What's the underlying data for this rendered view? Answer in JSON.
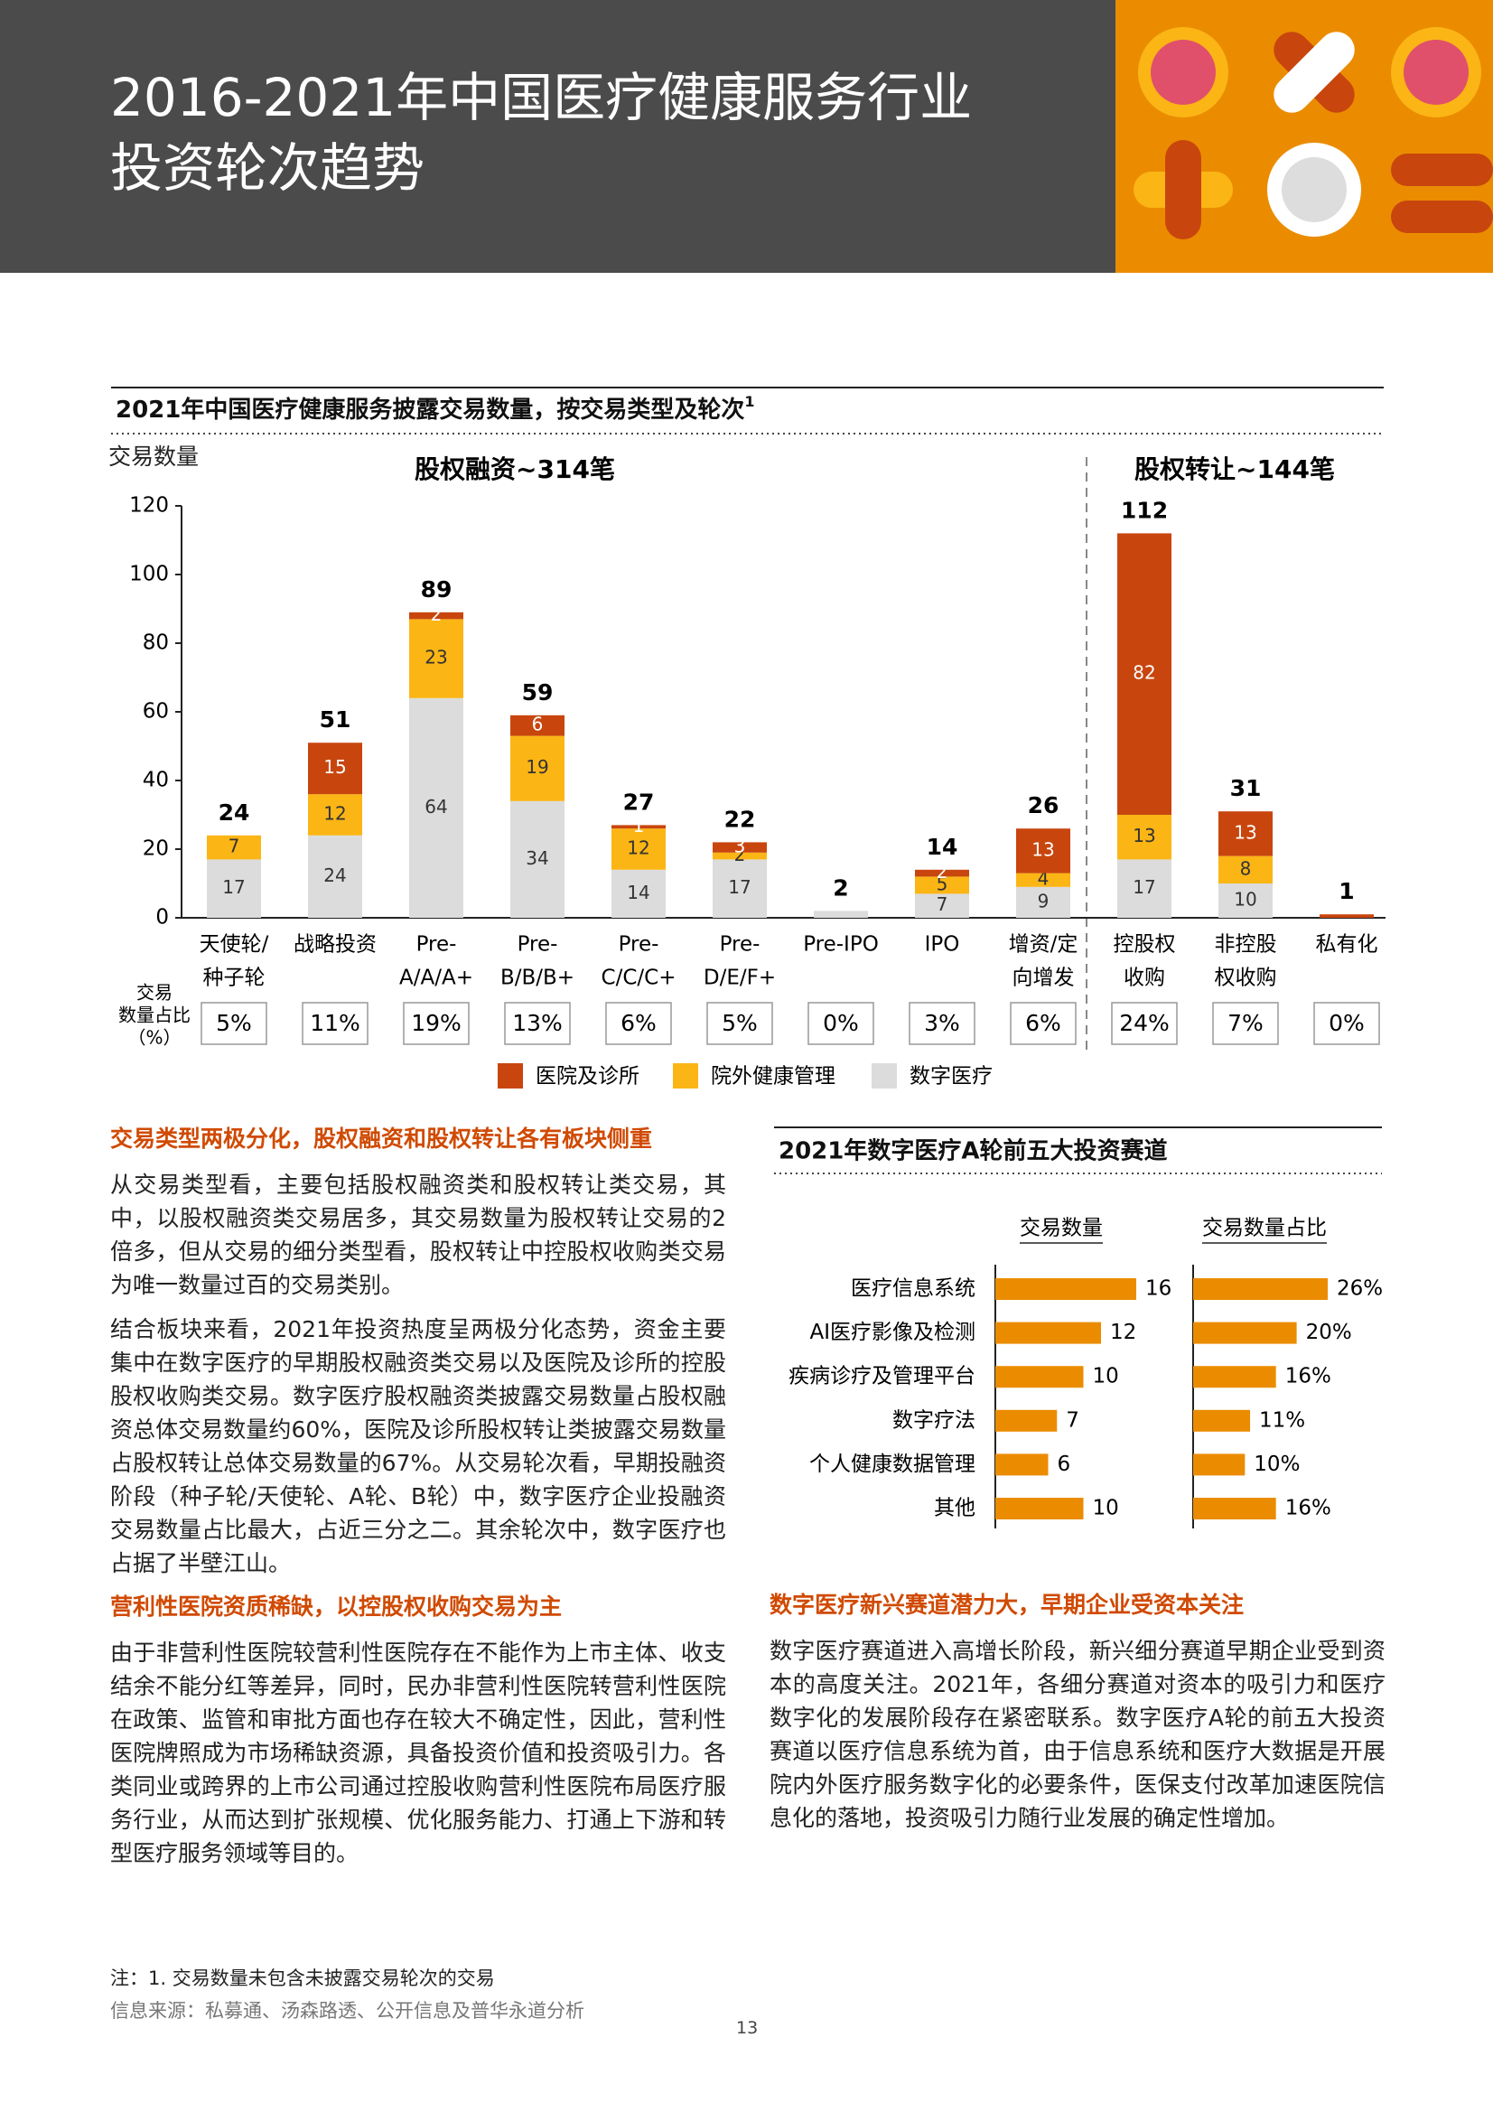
{
  "header": {
    "title": [
      "2016-2021年中国医疗健康服务行业",
      "投资轮次趋势"
    ]
  },
  "chart_data": [
    {
      "type": "stacked_bar",
      "title": "2021年中国医疗健康服务披露交易数量，按交易类型及轮次",
      "title_note": "1",
      "y_label": "交易数量",
      "groups": [
        "股权融资~314笔",
        "股权转让~144笔"
      ],
      "categories": [
        [
          "天使轮/",
          "种子轮"
        ],
        [
          "战略投资"
        ],
        [
          "Pre-",
          "A/A/A+"
        ],
        [
          "Pre-",
          "B/B/B+"
        ],
        [
          "Pre-",
          "C/C/C+"
        ],
        [
          "Pre-",
          "D/E/F+"
        ],
        [
          "Pre-IPO"
        ],
        [
          "IPO"
        ],
        [
          "增资/定",
          "向增发"
        ],
        [
          "控股权",
          "收购"
        ],
        [
          "非控股",
          "权收购"
        ],
        [
          "私有化"
        ]
      ],
      "series": [
        {
          "name": "医院及诊所",
          "color": "#c8460e",
          "values": [
            null,
            15,
            2,
            6,
            1,
            3,
            null,
            2,
            13,
            82,
            13,
            1
          ]
        },
        {
          "name": "院外健康管理",
          "color": "#fbb515",
          "values": [
            7,
            12,
            23,
            19,
            12,
            2,
            null,
            5,
            4,
            13,
            8,
            null
          ]
        },
        {
          "name": "数字医疗",
          "color": "#dcdcdc",
          "values": [
            17,
            24,
            64,
            34,
            14,
            17,
            2,
            7,
            9,
            17,
            10,
            null
          ]
        }
      ],
      "totals": [
        24,
        51,
        89,
        59,
        27,
        22,
        2,
        14,
        26,
        112,
        31,
        1
      ],
      "share_label": [
        "交易",
        "数量占比",
        "（%）"
      ],
      "shares": [
        "5%",
        "11%",
        "19%",
        "13%",
        "6%",
        "5%",
        "0%",
        "3%",
        "6%",
        "24%",
        "7%",
        "0%"
      ],
      "ylim": [
        0,
        120
      ],
      "yticks": [
        0,
        20,
        40,
        60,
        80,
        100,
        120
      ]
    },
    {
      "type": "hbar_pair",
      "title": "2021年数字医疗A轮前五大投资赛道",
      "categories": [
        "医疗信息系统",
        "AI医疗影像及检测",
        "疾病诊疗及管理平台",
        "数字疗法",
        "个人健康数据管理",
        "其他"
      ],
      "series": [
        {
          "name": "交易数量",
          "color": "#eb8c00",
          "values": [
            16,
            12,
            10,
            7,
            6,
            10
          ],
          "xlim": [
            0,
            16
          ]
        },
        {
          "name": "交易数量占比",
          "color": "#eb8c00",
          "values": [
            26,
            20,
            16,
            11,
            10,
            16
          ],
          "value_labels": [
            "26%",
            "20%",
            "16%",
            "11%",
            "10%",
            "16%"
          ],
          "xlim": [
            0,
            26
          ]
        }
      ]
    }
  ],
  "sections": [
    {
      "heading": "交易类型两极分化，股权融资和股权转让各有板块侧重",
      "paragraphs": [
        "从交易类型看，主要包括股权融资类和股权转让类交易，其中，以股权融资类交易居多，其交易数量为股权转让交易的2倍多，但从交易的细分类型看，股权转让中控股权收购类交易为唯一数量过百的交易类别。",
        "结合板块来看，2021年投资热度呈两极分化态势，资金主要集中在数字医疗的早期股权融资类交易以及医院及诊所的控股股权收购类交易。数字医疗股权融资类披露交易数量占股权融资总体交易数量约60%，医院及诊所股权转让类披露交易数量占股权转让总体交易数量的67%。从交易轮次看，早期投融资阶段（种子轮/天使轮、A轮、B轮）中，数字医疗企业投融资交易数量占比最大，占近三分之二。其余轮次中，数字医疗也占据了半壁江山。"
      ]
    },
    {
      "heading": "营利性医院资质稀缺，以控股权收购交易为主",
      "paragraphs": [
        "由于非营利性医院较营利性医院存在不能作为上市主体、收支结余不能分红等差异，同时，民办非营利性医院转营利性医院在政策、监管和审批方面也存在较大不确定性，因此，营利性医院牌照成为市场稀缺资源，具备投资价值和投资吸引力。各类同业或跨界的上市公司通过控股收购营利性医院布局医疗服务行业，从而达到扩张规模、优化服务能力、打通上下游和转型医疗服务领域等目的。"
      ]
    },
    {
      "heading": "数字医疗新兴赛道潜力大，早期企业受资本关注",
      "paragraphs": [
        "数字医疗赛道进入高增长阶段，新兴细分赛道早期企业受到资本的高度关注。2021年，各细分赛道对资本的吸引力和医疗数字化的发展阶段存在紧密联系。数字医疗A轮的前五大投资赛道以医疗信息系统为首，由于信息系统和医疗大数据是开展院内外医疗服务数字化的必要条件，医保支付改革加速医院信息化的落地，投资吸引力随行业发展的确定性增加。"
      ]
    }
  ],
  "notes": {
    "note": "注：1. 交易数量未包含未披露交易轮次的交易",
    "source": "信息来源：私募通、汤森路透、公开信息及普华永道分析"
  },
  "page_number": "13"
}
